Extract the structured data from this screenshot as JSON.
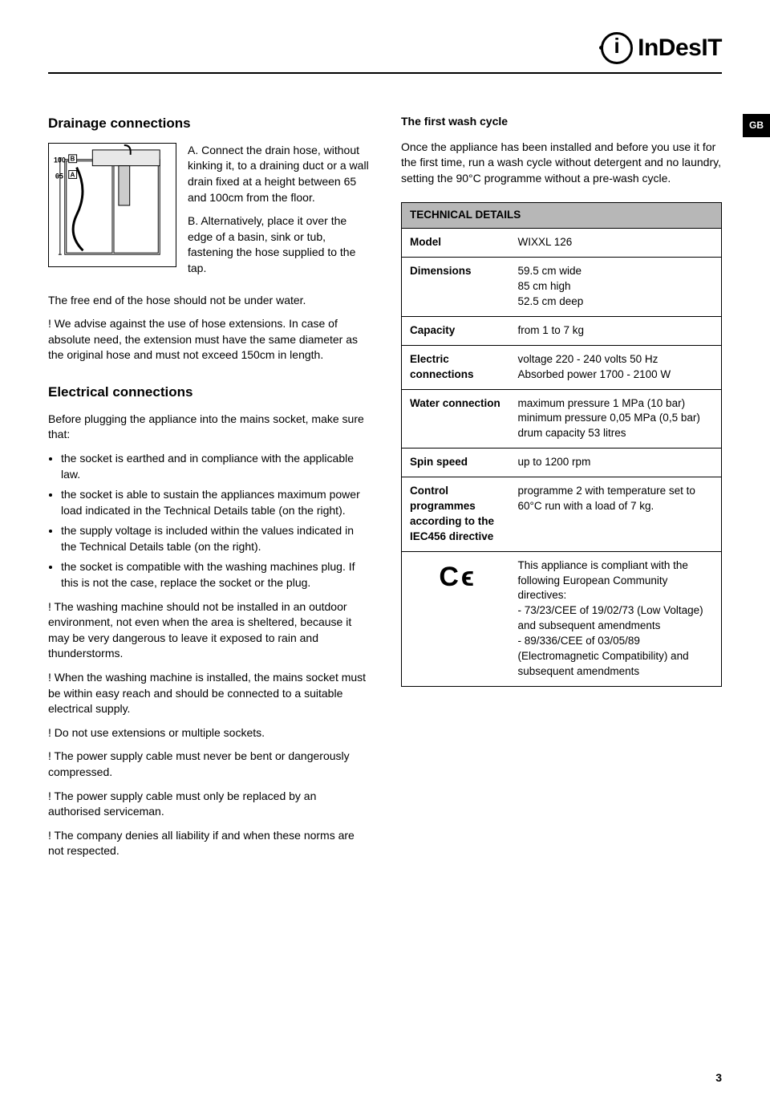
{
  "brand": {
    "name": "InDesIT"
  },
  "tab": "GB",
  "page_number": "3",
  "left": {
    "h_drainage": "Drainage connections",
    "drain_a": "A. Connect the drain hose, without kinking it, to a draining duct or a wall drain fixed at a height between 65 and 100cm from the floor.",
    "drain_b": "B. Alternatively, place it over the edge of a basin, sink or tub, fastening the hose supplied to the tap.",
    "drain_free": "The free end of the hose should not be under water.",
    "hose_warn": "! We advise against the use of hose extensions. In case of absolute need, the extension must have the same diameter as the original hose and must not exceed 150cm in length.",
    "h_electrical": "Electrical connections",
    "elec_intro": "Before plugging the appliance into the mains socket, make sure that:",
    "elec_bullets": [
      "the socket is earthed and in compliance with the applicable law.",
      "the socket is able to sustain the appliances maximum power load indicated in the Technical Details table (on the right).",
      "the supply voltage is included within the values indicated in the Technical Details table (on the right).",
      "the socket is compatible with the washing machines plug. If this is not the case, replace the socket or the plug."
    ],
    "elec_warns": [
      "! The washing machine should not be installed in an outdoor environment, not even when the area is sheltered, because it may be very dangerous to leave it exposed to rain and thunderstorms.",
      "! When the washing machine is installed, the mains socket must be within easy reach and should be connected to a suitable electrical supply.",
      "! Do not use extensions or multiple sockets.",
      "! The power supply cable must never be bent or dangerously compressed.",
      "! The power supply cable must only be replaced by an authorised serviceman.",
      "! The company denies all liability if and when these norms are not respected."
    ],
    "dims": {
      "h100": "100",
      "h65": "65",
      "A": "A",
      "B": "B"
    }
  },
  "right": {
    "h_first": "The first wash cycle",
    "first_body": "Once the appliance has been installed and before you use it for the first time, run a wash cycle without detergent and no laundry, setting the 90°C programme without a pre-wash cycle.",
    "tech_header": "TECHNICAL DETAILS",
    "rows": [
      {
        "label": "Model",
        "value": "WIXXL 126"
      },
      {
        "label": "Dimensions",
        "value": "59.5 cm wide\n85 cm high\n52.5 cm deep"
      },
      {
        "label": "Capacity",
        "value": "from 1 to 7 kg"
      },
      {
        "label": "Electric connections",
        "value": "voltage 220 - 240 volts 50 Hz\nAbsorbed power 1700 - 2100 W"
      },
      {
        "label": "Water connection",
        "value": "maximum pressure 1 MPa (10 bar)\nminimum pressure 0,05 MPa (0,5 bar)\ndrum capacity 53 litres"
      },
      {
        "label": "Spin speed",
        "value": "up to 1200 rpm"
      },
      {
        "label": "Control programmes according to the IEC456 directive",
        "value": "programme 2 with temperature set to 60°C run with a load of 7 kg."
      },
      {
        "label": "CE",
        "value": "This appliance is compliant with the following European Community directives:\n- 73/23/CEE of 19/02/73 (Low Voltage) and subsequent amendments\n- 89/336/CEE of 03/05/89 (Electromagnetic Compatibility) and subsequent amendments"
      }
    ]
  }
}
